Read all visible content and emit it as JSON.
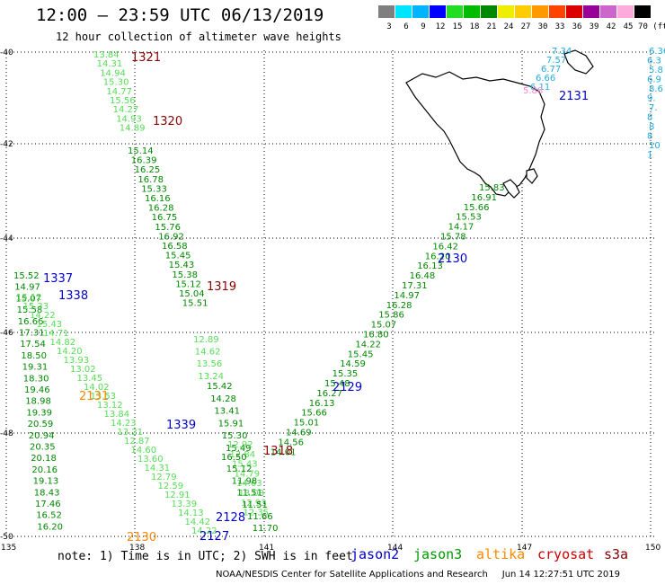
{
  "header": {
    "title": "12:00 — 23:59 UTC 06/13/2019",
    "subtitle": "12 hour collection of altimeter wave heights"
  },
  "colorbar": {
    "labels": [
      "3",
      "6",
      "9",
      "12",
      "15",
      "18",
      "21",
      "24",
      "27",
      "30",
      "33",
      "36",
      "39",
      "42",
      "45",
      "70 (ft)"
    ],
    "colors": [
      "#7f7f7f",
      "#00e5ff",
      "#00b4ff",
      "#0000ff",
      "#22dd22",
      "#00bb00",
      "#008800",
      "#eeee00",
      "#ffcc00",
      "#ff9900",
      "#ff4400",
      "#dd0000",
      "#990099",
      "#cc66cc",
      "#ffaadd",
      "#000000"
    ]
  },
  "axes": {
    "lon_ticks": [
      "135",
      "138",
      "141",
      "144",
      "147",
      "150"
    ],
    "lat_ticks": [
      "-40",
      "-42",
      "-44",
      "-46",
      "-48",
      "-50"
    ]
  },
  "colors": {
    "jason2": "#0000cc",
    "jason3": "#009900",
    "altika": "#ff8800",
    "cryosat": "#cc0000",
    "s3a": "#880000",
    "light_green": "#55dd55",
    "dark_green": "#008800",
    "cyan": "#22aadd",
    "pink": "#ff88cc",
    "maroon": "#880000"
  },
  "tracks": [
    {
      "color": "light_green",
      "values": [
        "13.84",
        "14.31",
        "14.94",
        "15.30",
        "14.77",
        "15.56",
        "14.27",
        "14.93",
        "14.89"
      ]
    },
    {
      "color": "dark_green",
      "values": [
        "15.14",
        "16.39",
        "16.25",
        "16.78",
        "15.33",
        "16.16",
        "16.28",
        "16.75",
        "15.76",
        "16.92",
        "16.58",
        "15.45",
        "15.43",
        "15.38",
        "15.12",
        "15.04",
        "15.51"
      ]
    },
    {
      "color": "light_green",
      "values": [
        "12.89",
        "14.62",
        "13.56",
        "13.24"
      ]
    },
    {
      "color": "dark_green",
      "values": [
        "15.42",
        "14.28",
        "13.41",
        "15.91",
        "15.30",
        "15.49"
      ]
    },
    {
      "color": "light_green",
      "values": [
        "12.92",
        "12.84",
        "15.43",
        "14.79",
        "14.63",
        "13.08",
        "12.93",
        "12.35"
      ]
    },
    {
      "color": "dark_green",
      "values": [
        "15.52",
        "14.97",
        "15.07",
        "15.58",
        "16.66",
        "17.31",
        "17.54",
        "18.50",
        "19.31",
        "18.30",
        "19.46",
        "18.98",
        "19.39",
        "20.59",
        "20.94",
        "20.35",
        "20.18",
        "20.16",
        "19.13",
        "18.43",
        "17.46",
        "16.52",
        "16.20"
      ]
    },
    {
      "color": "light_green",
      "values": [
        "15.12",
        "15.33",
        "14.22",
        "15.43",
        "14.71",
        "14.82",
        "14.20",
        "13.93",
        "13.02",
        "13.45",
        "14.02",
        "13.53",
        "13.12",
        "13.84",
        "14.23",
        "13.21",
        "12.87",
        "14.60",
        "13.60",
        "14.31",
        "12.79",
        "12.59",
        "12.91",
        "13.39",
        "14.13",
        "14.42",
        "14.22"
      ]
    },
    {
      "color": "dark_green",
      "values": [
        "15.83",
        "16.91",
        "15.66",
        "15.53",
        "14.17",
        "15.78",
        "16.42",
        "16.20",
        "16.13",
        "16.48",
        "17.31",
        "14.97",
        "16.28",
        "15.86",
        "15.07",
        "16.80",
        "14.22",
        "15.45",
        "14.59",
        "15.35",
        "15.48",
        "16.27",
        "16.13",
        "15.66",
        "15.01",
        "14.69",
        "14.56",
        "14.01"
      ]
    },
    {
      "color": "dark_green",
      "values": [
        "16.50",
        "15.12",
        "11.98",
        "11.51",
        "11.51",
        "11.66",
        "11.70"
      ]
    },
    {
      "color": "cyan",
      "values": [
        "7.34",
        "7.57",
        "6.77",
        "6.66",
        "6.11",
        "6.36",
        "6.3",
        "5.8",
        "6.9",
        "8.6",
        "9.",
        "7.",
        "8",
        "8",
        "8",
        "10",
        "1"
      ]
    },
    {
      "color": "pink",
      "values": [
        "5.88"
      ]
    }
  ],
  "track_labels": [
    {
      "text": "1321",
      "sat": "s3a"
    },
    {
      "text": "1320",
      "sat": "s3a"
    },
    {
      "text": "1319",
      "sat": "s3a"
    },
    {
      "text": "1318",
      "sat": "s3a"
    },
    {
      "text": "1337",
      "sat": "jason2"
    },
    {
      "text": "1338",
      "sat": "jason2"
    },
    {
      "text": "1339",
      "sat": "jason2"
    },
    {
      "text": "2131",
      "sat": "altika"
    },
    {
      "text": "2130",
      "sat": "altika"
    },
    {
      "text": "2131",
      "sat": "jason2"
    },
    {
      "text": "2130",
      "sat": "jason2"
    },
    {
      "text": "2129",
      "sat": "jason2"
    },
    {
      "text": "2128",
      "sat": "jason2"
    },
    {
      "text": "2127",
      "sat": "jason2"
    }
  ],
  "footer": {
    "note": "note: 1) Time is in UTC; 2) SWH is in feet",
    "legend": [
      {
        "name": "jason2",
        "sat": "jason2"
      },
      {
        "name": "jason3",
        "sat": "jason3"
      },
      {
        "name": "altika",
        "sat": "altika"
      },
      {
        "name": "cryosat",
        "sat": "cryosat"
      },
      {
        "name": "s3a",
        "sat": "s3a"
      }
    ],
    "credit": "NOAA/NESDIS Center for Satellite Applications and Research     Jun 14 12:27:51 UTC 2019"
  }
}
